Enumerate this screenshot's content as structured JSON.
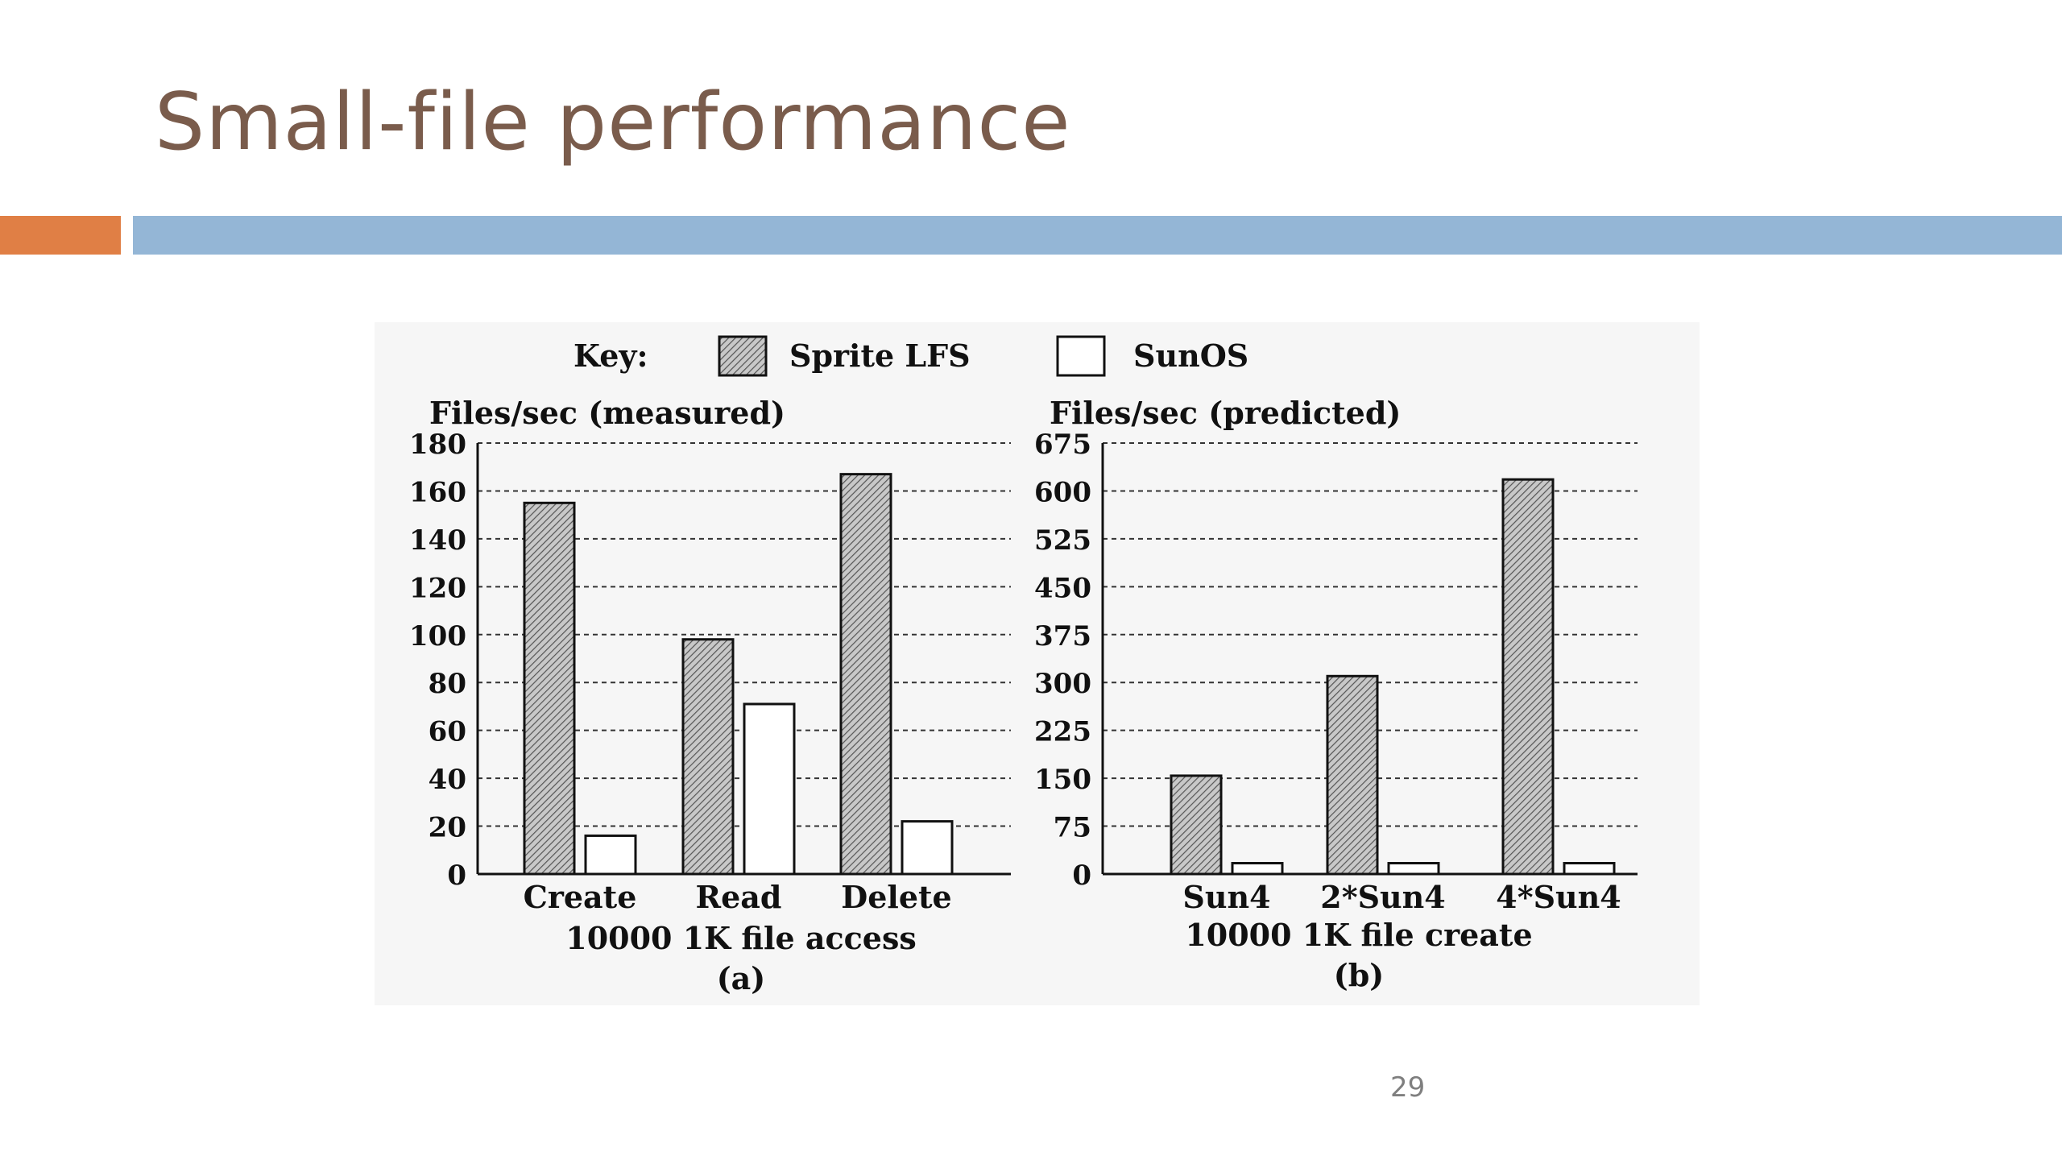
{
  "slide": {
    "title": "Small-file performance",
    "page_number": "29",
    "colors": {
      "title": "#7a5c4c",
      "accent_bar": "#e07f45",
      "main_bar": "#94b6d6"
    }
  },
  "figure": {
    "key_label": "Key:",
    "legend": [
      {
        "name": "Sprite LFS",
        "style": "hatched"
      },
      {
        "name": "SunOS",
        "style": "white"
      }
    ]
  },
  "chart_data": [
    {
      "type": "bar",
      "panel_label": "(a)",
      "ylabel": "Files/sec (measured)",
      "xlabel": "10000 1K file access",
      "categories": [
        "Create",
        "Read",
        "Delete"
      ],
      "yticks": [
        "0",
        "20",
        "40",
        "60",
        "80",
        "100",
        "120",
        "140",
        "160",
        "180"
      ],
      "ylim": [
        0,
        180
      ],
      "series": [
        {
          "name": "Sprite LFS",
          "values": [
            155,
            98,
            167
          ]
        },
        {
          "name": "SunOS",
          "values": [
            16,
            71,
            22
          ]
        }
      ],
      "grid": true
    },
    {
      "type": "bar",
      "panel_label": "(b)",
      "ylabel": "Files/sec (predicted)",
      "xlabel": "10000 1K file create",
      "categories": [
        "Sun4",
        "2*Sun4",
        "4*Sun4"
      ],
      "yticks": [
        "0",
        "75",
        "150",
        "225",
        "300",
        "375",
        "450",
        "525",
        "600",
        "675"
      ],
      "ylim": [
        0,
        675
      ],
      "series": [
        {
          "name": "Sprite LFS",
          "values": [
            154,
            310,
            618
          ]
        },
        {
          "name": "SunOS",
          "values": [
            17,
            17,
            17
          ]
        }
      ],
      "grid": true
    }
  ]
}
